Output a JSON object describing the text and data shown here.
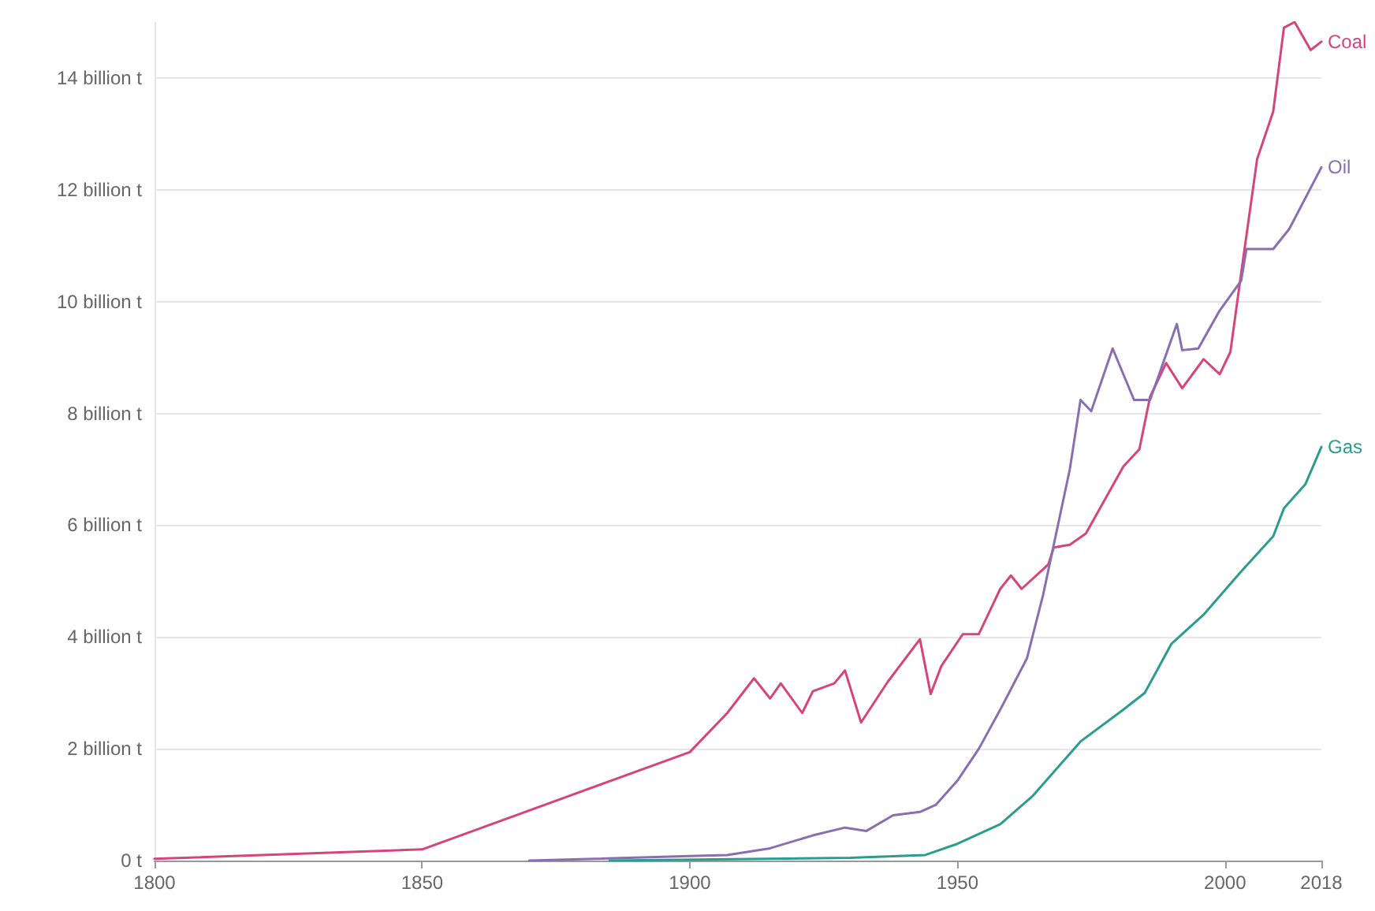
{
  "chart_data": {
    "type": "line",
    "xlim": [
      1800,
      2018
    ],
    "xticks": [
      1800,
      1850,
      1900,
      1950,
      2000,
      2018
    ],
    "ylim": [
      0,
      15
    ],
    "yticks": [
      {
        "value": 0,
        "label": "0 t"
      },
      {
        "value": 2,
        "label": "2 billion t"
      },
      {
        "value": 4,
        "label": "4 billion t"
      },
      {
        "value": 6,
        "label": "6 billion t"
      },
      {
        "value": 8,
        "label": "8 billion t"
      },
      {
        "value": 10,
        "label": "10 billion t"
      },
      {
        "value": 12,
        "label": "12 billion t"
      },
      {
        "value": 14,
        "label": "14 billion t"
      }
    ],
    "grid": "y",
    "legend": false,
    "marker": "none",
    "line_style": "solid",
    "series": [
      {
        "name": "Coal",
        "color": "#d6457a",
        "x": [
          1800,
          1850,
          1900,
          1907,
          1912,
          1915,
          1917,
          1921,
          1923,
          1927,
          1929,
          1932,
          1937,
          1943,
          1945,
          1947,
          1951,
          1954,
          1958,
          1960,
          1962,
          1967,
          1968,
          1971,
          1974,
          1981,
          1984,
          1986,
          1989,
          1992,
          1996,
          1999,
          2001,
          2003,
          2006,
          2009,
          2011,
          2013,
          2016,
          2018
        ],
        "values": [
          0.03,
          0.2,
          1.94,
          2.64,
          3.26,
          2.9,
          3.17,
          2.64,
          3.03,
          3.17,
          3.4,
          2.47,
          3.2,
          3.96,
          2.98,
          3.48,
          4.05,
          4.05,
          4.86,
          5.1,
          4.86,
          5.3,
          5.6,
          5.65,
          5.85,
          7.05,
          7.36,
          8.3,
          8.9,
          8.45,
          8.97,
          8.7,
          9.1,
          10.5,
          12.55,
          13.4,
          14.9,
          15.0,
          14.5,
          14.65
        ]
      },
      {
        "name": "Oil",
        "color": "#8a6fb0",
        "x": [
          1870,
          1900,
          1907,
          1915,
          1923,
          1929,
          1933,
          1938,
          1943,
          1946,
          1950,
          1954,
          1958,
          1963,
          1966,
          1971,
          1973,
          1975,
          1979,
          1983,
          1986,
          1991,
          1992,
          1995,
          1999,
          2003,
          2004,
          2009,
          2012,
          2018
        ],
        "values": [
          0,
          0.08,
          0.1,
          0.22,
          0.45,
          0.59,
          0.53,
          0.81,
          0.87,
          1.0,
          1.43,
          2.0,
          2.7,
          3.62,
          4.75,
          7.0,
          8.24,
          8.04,
          9.16,
          8.24,
          8.24,
          9.6,
          9.13,
          9.16,
          9.84,
          10.37,
          10.94,
          10.94,
          11.3,
          12.4
        ]
      },
      {
        "name": "Gas",
        "color": "#2a9d8f",
        "x": [
          1885,
          1930,
          1944,
          1950,
          1958,
          1964,
          1973,
          1981,
          1985,
          1990,
          1996,
          2003,
          2009,
          2011,
          2015,
          2018
        ],
        "values": [
          0,
          0.05,
          0.1,
          0.3,
          0.65,
          1.15,
          2.13,
          2.7,
          3.0,
          3.88,
          4.4,
          5.17,
          5.8,
          6.3,
          6.73,
          7.4
        ]
      }
    ]
  }
}
